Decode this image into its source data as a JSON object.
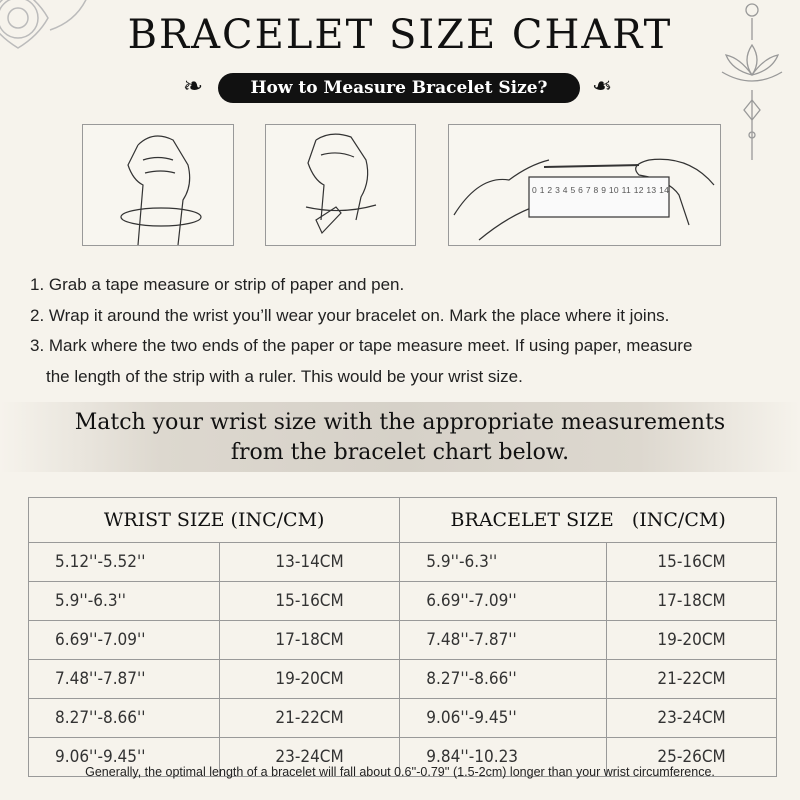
{
  "title": "BRACELET SIZE CHART",
  "subtitle": "How to Measure Bracelet Size?",
  "ruler_numbers": "0 1 2 3 4 5 6 7 8 9 10 11 12 13 14",
  "steps": [
    "1. Grab a tape measure or strip of paper and pen.",
    "2. Wrap it around the wrist you’ll wear your bracelet on. Mark the place where it joins.",
    "3. Mark where the two ends of the paper or tape measure meet. If using paper, measure",
    "the length of the strip with a ruler. This would be your wrist size."
  ],
  "band": {
    "line1": "Match your wrist size with the appropriate measurements",
    "line2": "from the bracelet chart below."
  },
  "table": {
    "headers": [
      "WRIST SIZE (INC/CM)",
      "BRACELET SIZE   (INC/CM)"
    ],
    "rows": [
      [
        "5.12''-5.52''",
        "13-14CM",
        "5.9''-6.3''",
        "15-16CM"
      ],
      [
        "5.9''-6.3''",
        "15-16CM",
        "6.69''-7.09''",
        "17-18CM"
      ],
      [
        "6.69''-7.09''",
        "17-18CM",
        "7.48''-7.87''",
        "19-20CM"
      ],
      [
        "7.48''-7.87''",
        "19-20CM",
        "8.27''-8.66''",
        "21-22CM"
      ],
      [
        "8.27''-8.66''",
        "21-22CM",
        "9.06''-9.45''",
        "23-24CM"
      ],
      [
        "9.06''-9.45''",
        "23-24CM",
        "9.84''-10.23",
        "25-26CM"
      ]
    ]
  },
  "footnote": "Generally, the optimal length of a bracelet will fall about 0.6''-0.79'' (1.5-2cm) longer than your wrist circumference.",
  "colors": {
    "background": "#f6f3ec",
    "pill": "#111111",
    "band": "#d6d1c8"
  }
}
